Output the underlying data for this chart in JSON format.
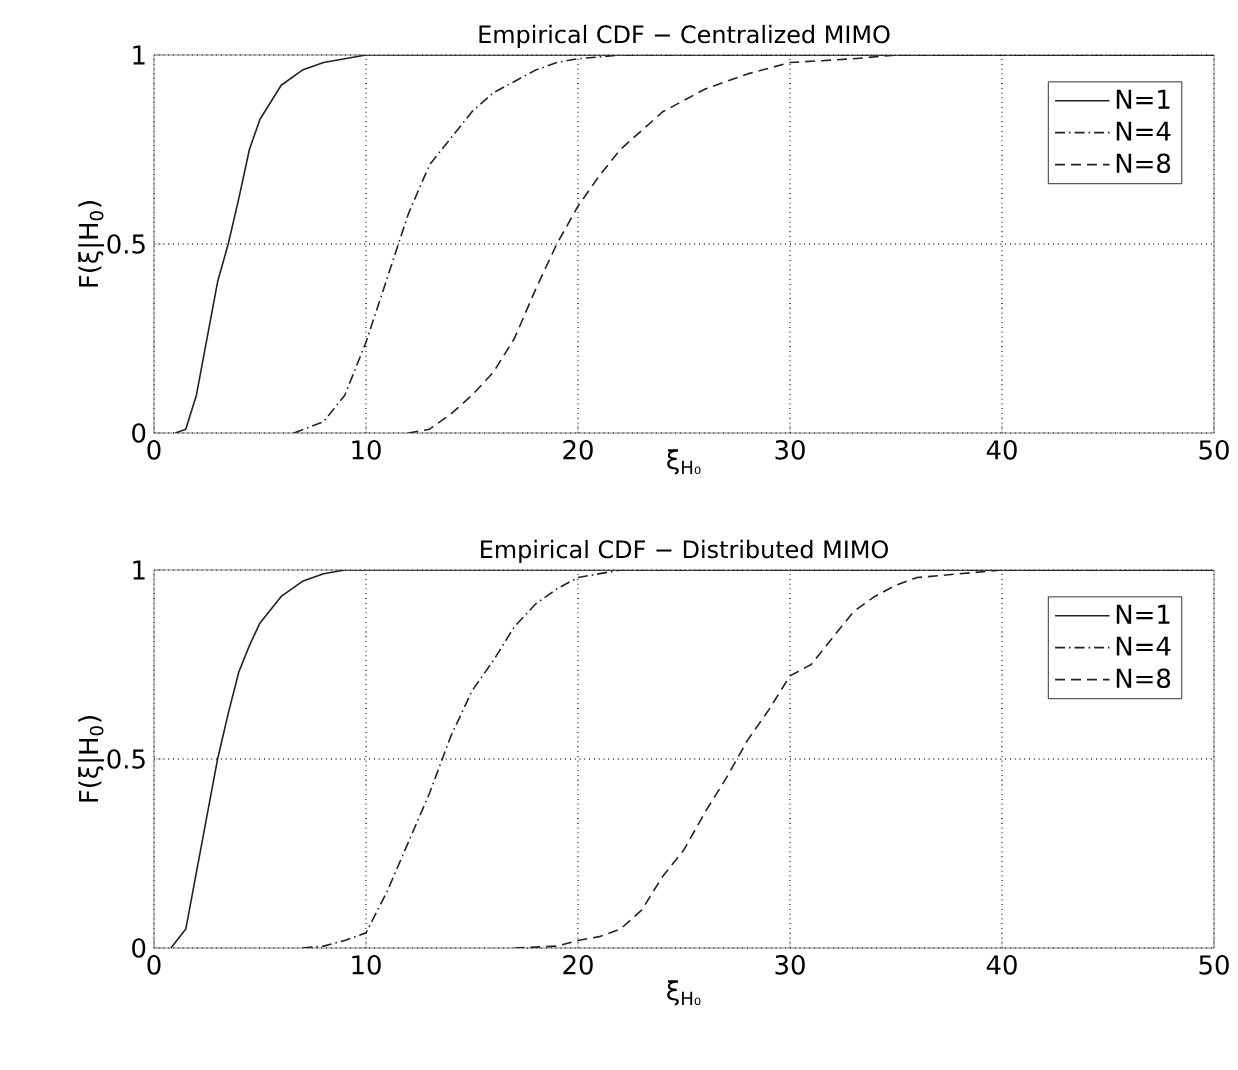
{
  "chart_data": [
    {
      "type": "line",
      "title": "Empirical CDF − Centralized MIMO",
      "xlabel": "ξ$_{H₀}$",
      "ylabel": "F(ξ|H$_{0}$)",
      "xlim": [
        0,
        50
      ],
      "ylim": [
        0,
        1
      ],
      "xticks": [
        0,
        10,
        20,
        30,
        40,
        50
      ],
      "yticks": [
        0,
        0.5,
        1
      ],
      "grid": true,
      "legend": "top right",
      "series": [
        {
          "name": "N=1",
          "color": "#222222",
          "line_style": "solid",
          "x": [
            1.0,
            1.5,
            2,
            2.5,
            3,
            3.5,
            4,
            4.5,
            5,
            6,
            7,
            8,
            9,
            10,
            50
          ],
          "values": [
            0,
            0.01,
            0.1,
            0.25,
            0.4,
            0.5,
            0.62,
            0.75,
            0.83,
            0.92,
            0.96,
            0.98,
            0.99,
            1,
            1
          ]
        },
        {
          "name": "N=4",
          "color": "#222222",
          "line_style": "dashdot",
          "x": [
            6.6,
            8,
            9,
            10,
            11,
            12,
            13,
            14,
            15,
            16,
            17,
            18,
            19,
            20,
            22,
            50
          ],
          "values": [
            0,
            0.03,
            0.1,
            0.24,
            0.41,
            0.58,
            0.71,
            0.78,
            0.85,
            0.9,
            0.93,
            0.96,
            0.98,
            0.99,
            1,
            1
          ]
        },
        {
          "name": "N=8",
          "color": "#222222",
          "line_style": "dashed",
          "x": [
            12,
            13,
            14,
            15,
            16,
            17,
            18,
            19,
            20,
            21,
            22,
            23,
            24,
            25,
            26,
            27,
            28,
            30,
            33,
            35,
            50
          ],
          "values": [
            0,
            0.01,
            0.05,
            0.1,
            0.16,
            0.25,
            0.38,
            0.5,
            0.6,
            0.68,
            0.75,
            0.8,
            0.85,
            0.88,
            0.91,
            0.93,
            0.95,
            0.98,
            0.99,
            1,
            1
          ]
        }
      ]
    },
    {
      "type": "line",
      "title": "Empirical CDF − Distributed MIMO",
      "xlabel": "ξ$_{H₀}$",
      "ylabel": "F(ξ|H$_{0}$)",
      "xlim": [
        0,
        50
      ],
      "ylim": [
        0,
        1
      ],
      "xticks": [
        0,
        10,
        20,
        30,
        40,
        50
      ],
      "yticks": [
        0,
        0.5,
        1
      ],
      "grid": true,
      "legend": "top right",
      "series": [
        {
          "name": "N=1",
          "color": "#222222",
          "line_style": "solid",
          "x": [
            0.8,
            1.5,
            2,
            2.5,
            3,
            3.5,
            4,
            4.5,
            5,
            6,
            7,
            8,
            9,
            50
          ],
          "values": [
            0,
            0.05,
            0.2,
            0.35,
            0.5,
            0.62,
            0.73,
            0.8,
            0.86,
            0.93,
            0.97,
            0.99,
            1,
            1
          ]
        },
        {
          "name": "N=4",
          "color": "#222222",
          "line_style": "dashdot",
          "x": [
            7,
            8,
            9,
            10,
            11,
            12,
            13,
            14,
            15,
            16,
            17,
            18,
            19,
            20,
            22,
            50
          ],
          "values": [
            0,
            0.005,
            0.02,
            0.04,
            0.15,
            0.28,
            0.41,
            0.56,
            0.68,
            0.76,
            0.85,
            0.91,
            0.95,
            0.98,
            1,
            1
          ]
        },
        {
          "name": "N=8",
          "color": "#222222",
          "line_style": "dashed",
          "x": [
            17,
            19,
            20,
            21,
            22,
            23,
            24,
            25,
            26,
            27,
            28,
            29,
            30,
            31,
            32,
            33,
            34,
            35,
            36,
            38,
            40,
            50
          ],
          "values": [
            0,
            0.005,
            0.02,
            0.03,
            0.05,
            0.1,
            0.19,
            0.26,
            0.36,
            0.45,
            0.55,
            0.63,
            0.72,
            0.75,
            0.82,
            0.89,
            0.93,
            0.96,
            0.98,
            0.99,
            1,
            1
          ]
        }
      ]
    }
  ]
}
